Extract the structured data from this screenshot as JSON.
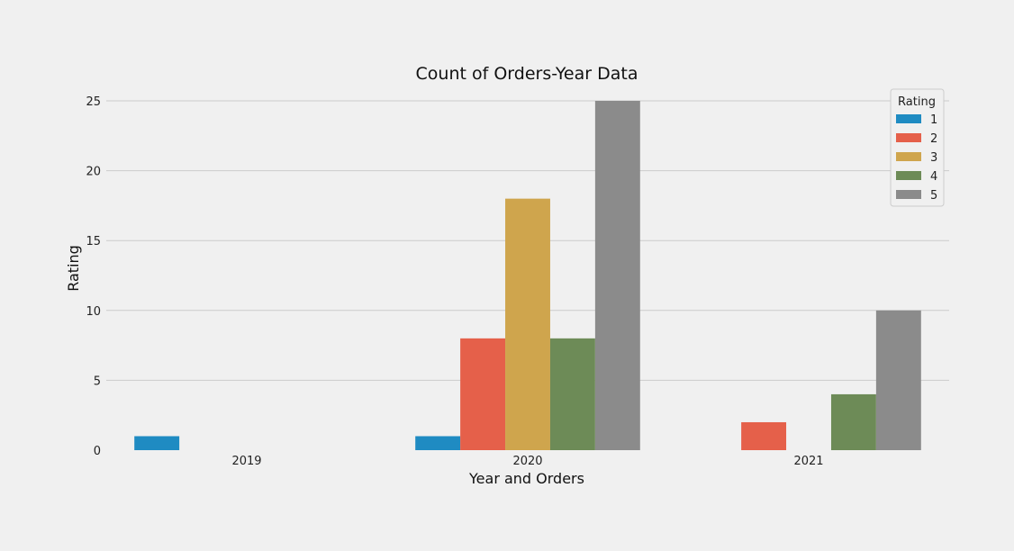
{
  "chart_data": {
    "type": "bar",
    "title": "Count of Orders-Year Data",
    "xlabel": "Year and Orders",
    "ylabel": "Rating",
    "categories": [
      "2019",
      "2020",
      "2021"
    ],
    "ylim": [
      0,
      25
    ],
    "yticks": [
      0,
      5,
      10,
      15,
      20,
      25
    ],
    "grid": true,
    "legend": {
      "title": "Rating",
      "placement": "top-right"
    },
    "series": [
      {
        "name": "1",
        "color": "#1f8bc2",
        "values": [
          1,
          1,
          0
        ]
      },
      {
        "name": "2",
        "color": "#e5604a",
        "values": [
          0,
          8,
          2
        ]
      },
      {
        "name": "3",
        "color": "#cfa54d",
        "values": [
          0,
          18,
          0
        ]
      },
      {
        "name": "4",
        "color": "#6d8b57",
        "values": [
          0,
          8,
          4
        ]
      },
      {
        "name": "5",
        "color": "#8b8b8b",
        "values": [
          0,
          25,
          10
        ]
      }
    ]
  }
}
